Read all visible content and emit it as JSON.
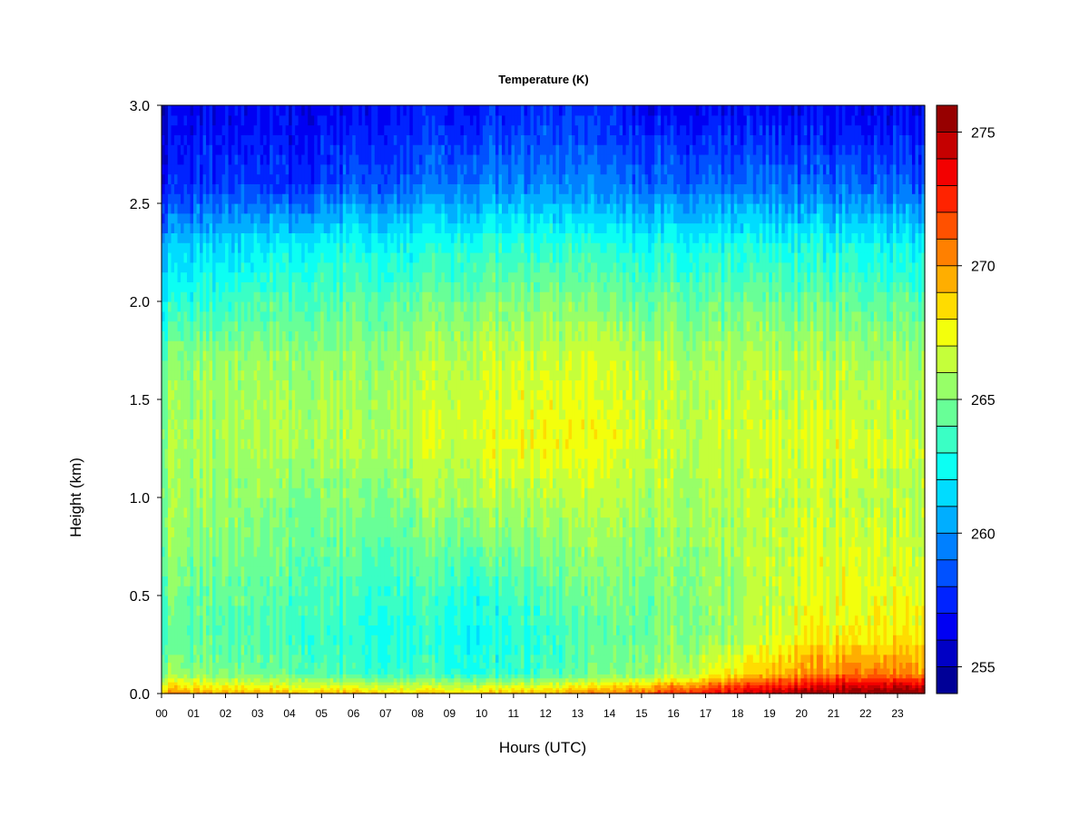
{
  "chart_data": {
    "type": "heatmap",
    "title": "Temperature (K)",
    "xlabel": "Hours (UTC)",
    "ylabel": "Height (km)",
    "x_ticks": [
      "00",
      "01",
      "02",
      "03",
      "04",
      "05",
      "06",
      "07",
      "08",
      "09",
      "10",
      "11",
      "12",
      "13",
      "14",
      "15",
      "16",
      "17",
      "18",
      "19",
      "20",
      "21",
      "22",
      "23"
    ],
    "y_ticks": [
      "0.0",
      "0.5",
      "1.0",
      "1.5",
      "2.0",
      "2.5",
      "3.0"
    ],
    "xlim": [
      0,
      23.85
    ],
    "ylim": [
      0,
      3.0
    ],
    "colorbar": {
      "ticks": [
        "255",
        "260",
        "265",
        "270",
        "275"
      ],
      "range": [
        254,
        276
      ],
      "levels": 22
    },
    "hours": [
      0,
      2,
      4,
      6,
      8,
      10,
      12,
      14,
      16,
      18,
      20,
      22,
      23.8
    ],
    "heights_km": [
      0.0,
      0.03,
      0.1,
      0.3,
      0.5,
      1.0,
      1.3,
      1.7,
      2.0,
      2.3,
      2.6,
      3.0
    ],
    "temperature_K": [
      [
        270.5,
        270.0,
        269.5,
        269.5,
        269.0,
        269.0,
        269.5,
        270.5,
        272.5,
        274.0,
        275.5,
        276.0,
        276.0
      ],
      [
        268.5,
        268.0,
        267.5,
        267.5,
        267.0,
        267.0,
        267.5,
        268.5,
        270.5,
        272.5,
        274.0,
        275.0,
        275.0
      ],
      [
        265.5,
        265.0,
        264.5,
        263.5,
        263.5,
        263.0,
        263.5,
        264.5,
        266.0,
        268.0,
        270.0,
        271.0,
        270.0
      ],
      [
        264.0,
        264.0,
        263.5,
        263.0,
        263.0,
        262.5,
        263.0,
        264.0,
        265.0,
        265.5,
        267.5,
        268.0,
        268.0
      ],
      [
        264.5,
        264.5,
        264.0,
        263.5,
        263.5,
        263.0,
        264.0,
        264.5,
        265.0,
        265.5,
        267.0,
        267.5,
        267.0
      ],
      [
        265.5,
        265.5,
        265.0,
        265.0,
        265.5,
        266.0,
        266.0,
        266.0,
        266.0,
        266.0,
        266.5,
        266.5,
        266.0
      ],
      [
        265.5,
        266.0,
        266.0,
        266.0,
        266.5,
        267.0,
        267.5,
        267.0,
        266.5,
        266.5,
        267.0,
        267.0,
        266.5
      ],
      [
        265.0,
        265.5,
        265.5,
        265.5,
        266.0,
        266.5,
        266.5,
        266.5,
        266.0,
        266.0,
        266.0,
        266.0,
        265.5
      ],
      [
        262.5,
        263.5,
        264.0,
        264.0,
        264.5,
        265.0,
        265.0,
        264.5,
        264.5,
        264.5,
        264.5,
        264.5,
        264.0
      ],
      [
        260.5,
        261.5,
        262.0,
        262.5,
        262.5,
        263.0,
        263.0,
        262.5,
        262.5,
        262.5,
        262.5,
        262.5,
        262.0
      ],
      [
        257.0,
        258.0,
        257.5,
        258.5,
        259.0,
        259.5,
        259.5,
        259.0,
        259.0,
        259.0,
        259.0,
        259.0,
        258.5
      ],
      [
        256.0,
        256.5,
        256.5,
        256.5,
        257.0,
        257.0,
        257.5,
        257.0,
        256.5,
        256.5,
        256.5,
        256.5,
        256.5
      ]
    ]
  }
}
